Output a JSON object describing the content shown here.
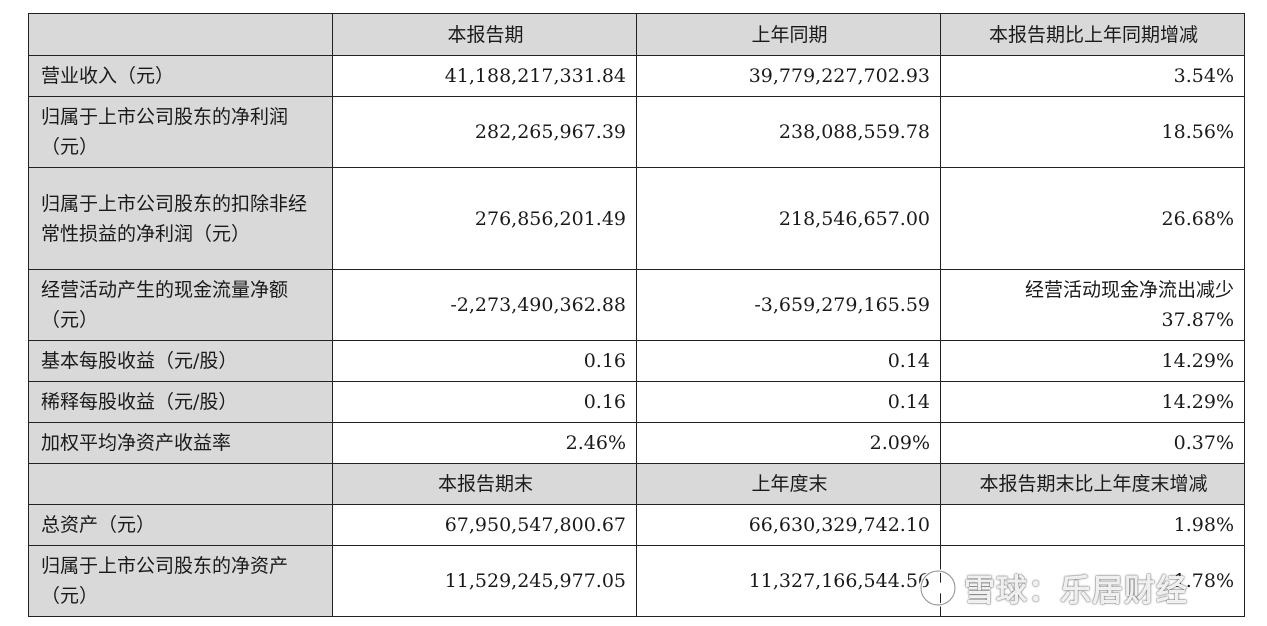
{
  "header": [
    "",
    "本报告期",
    "上年同期",
    "本报告期比上年同期增减"
  ],
  "rows": [
    {
      "label": "营业收入（元）",
      "v1": "41,188,217,331.84",
      "v2": "39,779,227,702.93",
      "v3": "3.54%"
    },
    {
      "label": "归属于上市公司股东的净利润（元）",
      "v1": "282,265,967.39",
      "v2": "238,088,559.78",
      "v3": "18.56%"
    },
    {
      "label": "归属于上市公司股东的扣除非经常性损益的净利润（元）",
      "v1": "276,856,201.49",
      "v2": "218,546,657.00",
      "v3": "26.68%"
    },
    {
      "label": "经营活动产生的现金流量净额（元）",
      "v1": "-2,273,490,362.88",
      "v2": "-3,659,279,165.59",
      "v3": "经营活动现金净流出减少 37.87%"
    },
    {
      "label": "基本每股收益（元/股）",
      "v1": "0.16",
      "v2": "0.14",
      "v3": "14.29%"
    },
    {
      "label": "稀释每股收益（元/股）",
      "v1": "0.16",
      "v2": "0.14",
      "v3": "14.29%"
    },
    {
      "label": "加权平均净资产收益率",
      "v1": "2.46%",
      "v2": "2.09%",
      "v3": "0.37%"
    }
  ],
  "header2": [
    "",
    "本报告期末",
    "上年度末",
    "本报告期末比上年度末增减"
  ],
  "rows2": [
    {
      "label": "总资产（元）",
      "v1": "67,950,547,800.67",
      "v2": "66,630,329,742.10",
      "v3": "1.98%"
    },
    {
      "label": "归属于上市公司股东的净资产（元）",
      "v1": "11,529,245,977.05",
      "v2": "11,327,166,544.56",
      "v3": "1.78%"
    }
  ],
  "watermark": {
    "text": "雪球：乐居财经",
    "icon": "snowball-logo-icon"
  }
}
